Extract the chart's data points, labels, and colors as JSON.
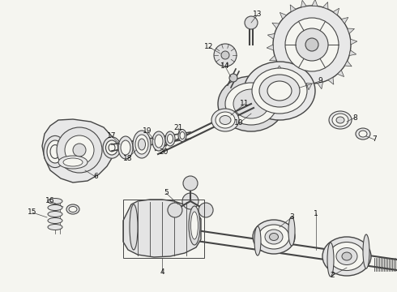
{
  "bg_color": "#f5f5f0",
  "line_color": "#444444",
  "text_color": "#111111",
  "figsize": [
    4.9,
    3.6
  ],
  "dpi": 100
}
